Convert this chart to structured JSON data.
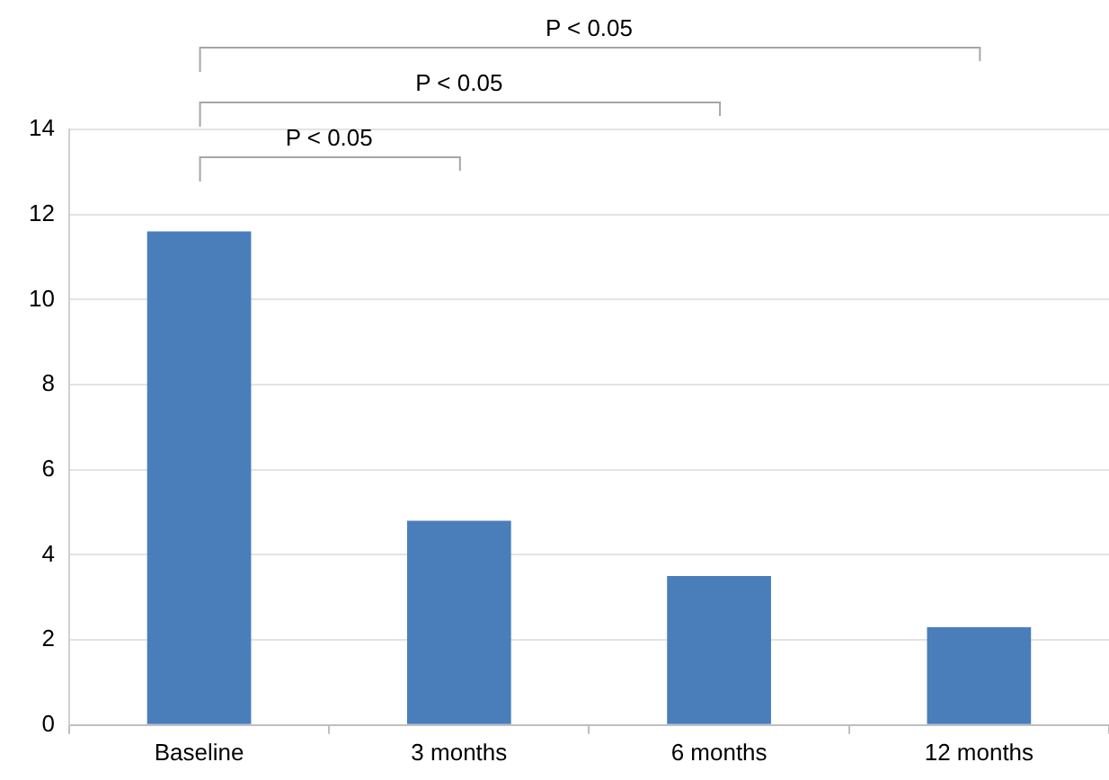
{
  "chart_data": {
    "type": "bar",
    "categories": [
      "Baseline",
      "3 months",
      "6 months",
      "12 months"
    ],
    "values": [
      11.6,
      4.8,
      3.5,
      2.3
    ],
    "color": "#4a7ebb",
    "ylim": [
      0,
      14
    ],
    "yticks": [
      0,
      2,
      4,
      6,
      8,
      10,
      12,
      14
    ],
    "grid": "y",
    "annotations": [
      "P < 0.05",
      "P < 0.05",
      "P < 0.05"
    ]
  }
}
